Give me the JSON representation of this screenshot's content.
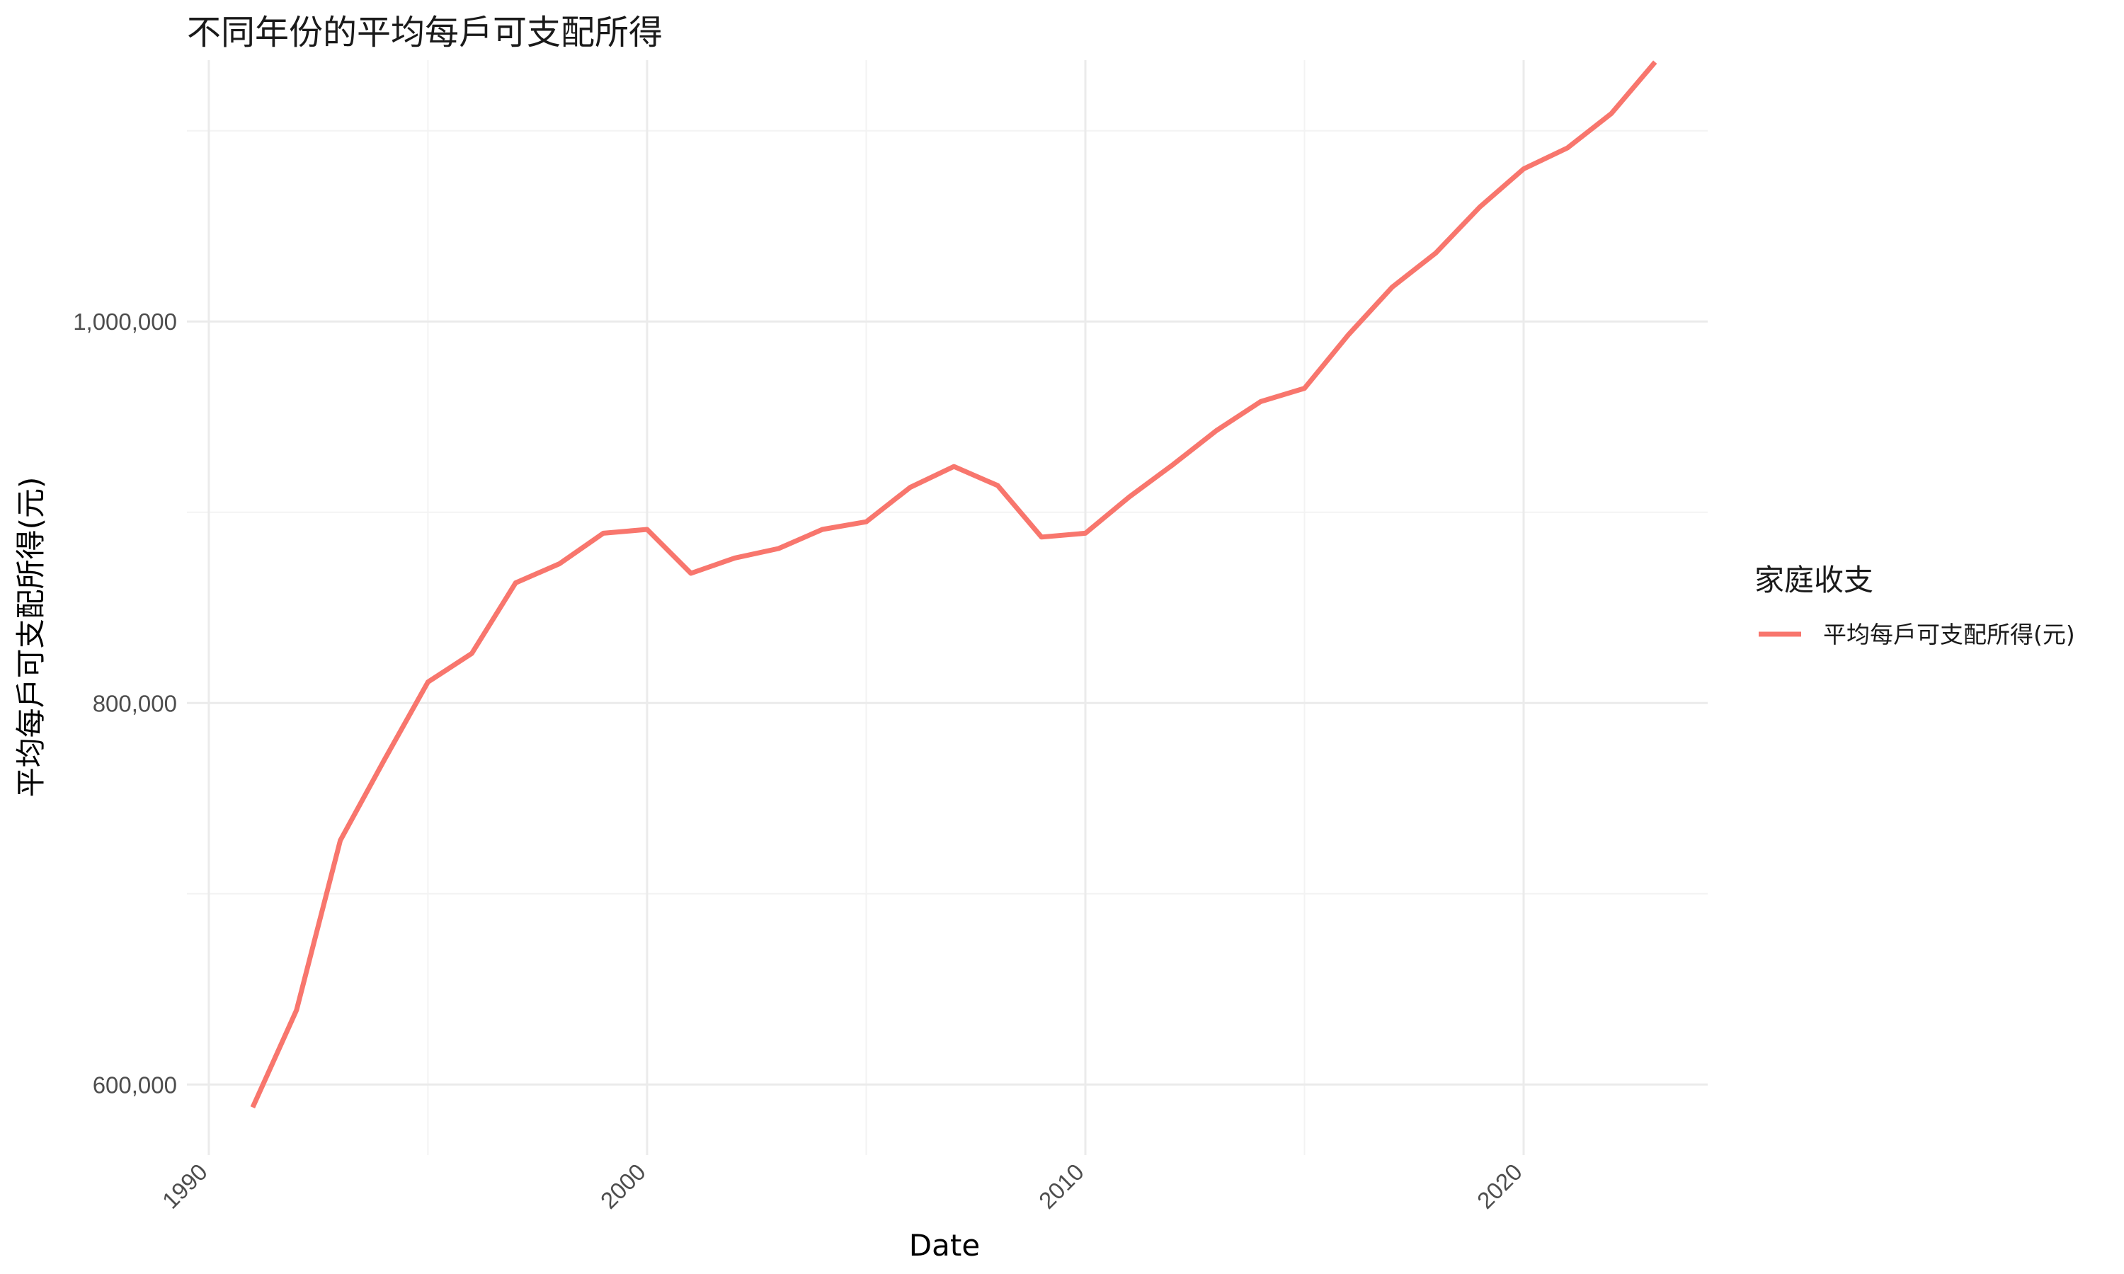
{
  "chart_data": {
    "type": "line",
    "title": "不同年份的平均每戶可支配所得",
    "xlabel": "Date",
    "ylabel": "平均每戶可支配所得(元)",
    "xlim": [
      1989.5,
      2024.2
    ],
    "ylim": [
      563000,
      1137000
    ],
    "x_ticks": [
      1990,
      2000,
      2010,
      2020
    ],
    "x_tick_labels": [
      "1990",
      "2000",
      "2010",
      "2020"
    ],
    "x_minor_ticks": [
      1995,
      2005,
      2015
    ],
    "y_ticks": [
      600000,
      800000,
      1000000
    ],
    "y_tick_labels": [
      "600,000",
      "800,000",
      "1,000,000"
    ],
    "y_minor_ticks": [
      700000,
      900000,
      1100000
    ],
    "grid": true,
    "legend": {
      "title": "家庭收支",
      "position": "right"
    },
    "series": [
      {
        "name": "平均每戶可支配所得(元)",
        "color": "#F8766D",
        "x": [
          1991,
          1992,
          1993,
          1994,
          1995,
          1996,
          1997,
          1998,
          1999,
          2000,
          2001,
          2002,
          2003,
          2004,
          2005,
          2006,
          2007,
          2008,
          2009,
          2010,
          2011,
          2012,
          2013,
          2014,
          2015,
          2016,
          2017,
          2018,
          2019,
          2020,
          2021,
          2022,
          2023
        ],
        "y": [
          588000,
          639000,
          728000,
          770000,
          811000,
          826000,
          863000,
          873000,
          889000,
          891000,
          868000,
          876000,
          881000,
          891000,
          895000,
          913000,
          924000,
          914000,
          887000,
          889000,
          908000,
          925000,
          943000,
          958000,
          965000,
          993000,
          1018000,
          1036000,
          1060000,
          1080000,
          1091000,
          1109000,
          1136000
        ]
      }
    ]
  }
}
